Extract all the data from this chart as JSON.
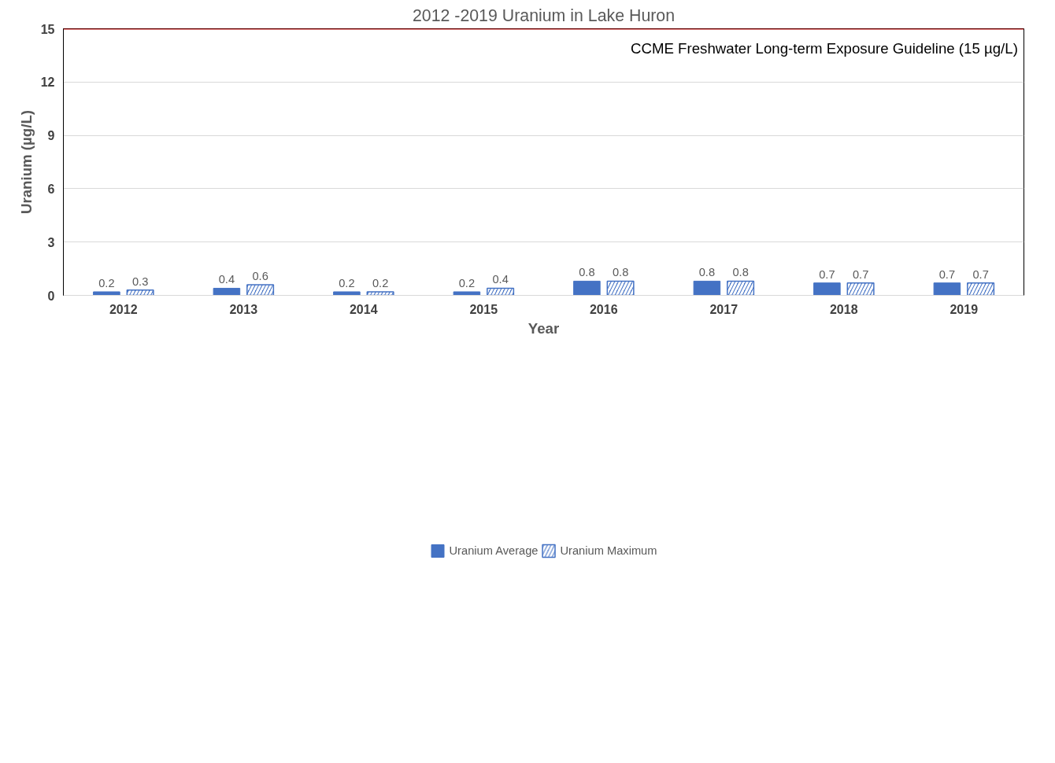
{
  "chart_data": {
    "type": "bar",
    "title": "2012 -2019 Uranium in Lake Huron",
    "xlabel": "Year",
    "ylabel": "Uranium (µg/L)",
    "categories": [
      "2012",
      "2013",
      "2014",
      "2015",
      "2016",
      "2017",
      "2018",
      "2019"
    ],
    "series": [
      {
        "name": "Uranium Average",
        "color": "#4472c4",
        "values": [
          0.2,
          0.4,
          0.2,
          0.2,
          0.8,
          0.8,
          0.7,
          0.7
        ]
      },
      {
        "name": "Uranium Maximum",
        "color": "#4472c4",
        "values": [
          0.3,
          0.6,
          0.2,
          0.4,
          0.8,
          0.8,
          0.7,
          0.7
        ]
      }
    ],
    "ylim": [
      0,
      15
    ],
    "yticks": [
      0,
      3,
      6,
      9,
      12,
      15
    ],
    "grid": "y",
    "legend": "bottom",
    "data_labels": true,
    "ref_lines": [
      {
        "axis": "y",
        "value": 15,
        "label": "CCME Freshwater Long-term Exposure Guideline (15 µg/L)",
        "color": "#c00000"
      }
    ]
  }
}
